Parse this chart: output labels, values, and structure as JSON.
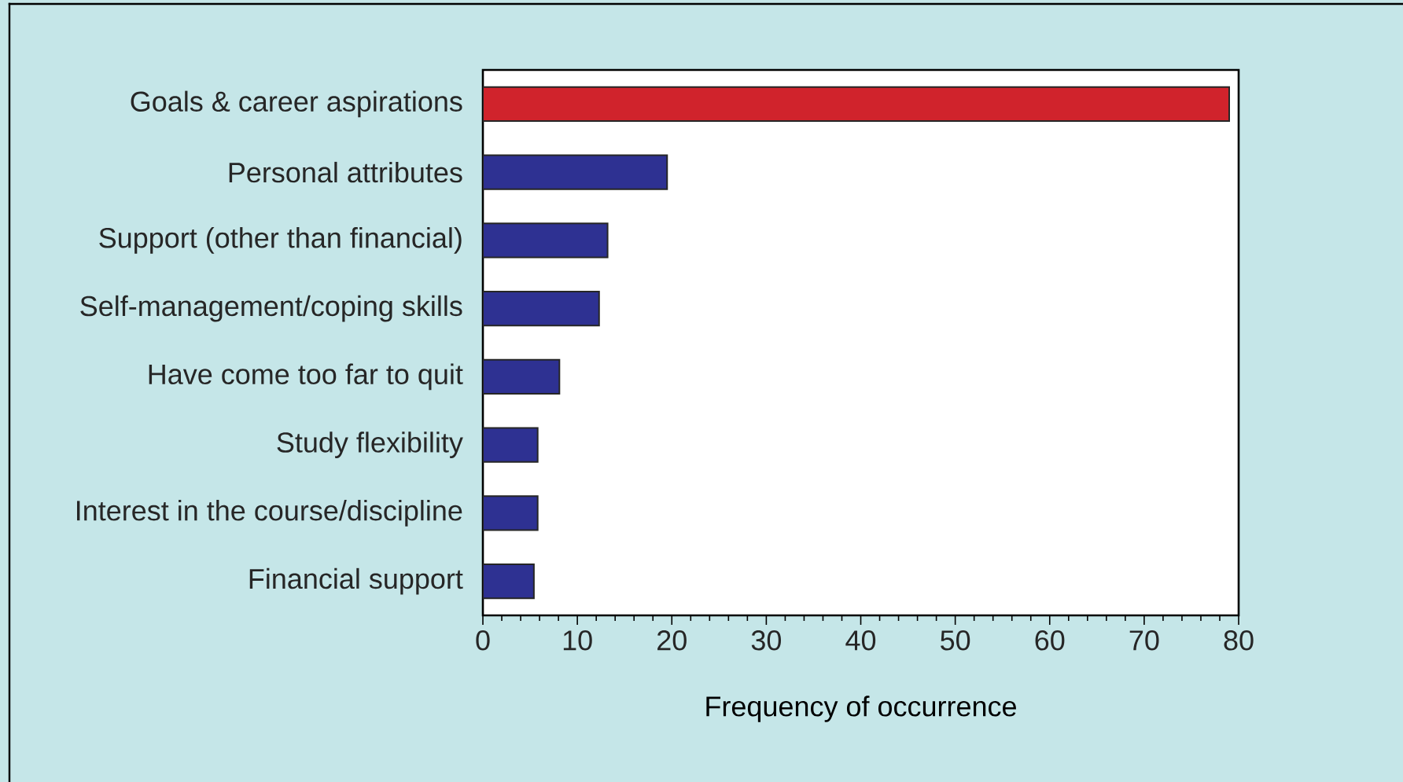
{
  "chart_data": {
    "type": "bar",
    "orientation": "horizontal",
    "xlabel": "Frequency of occurrence",
    "categories": [
      "Goals & career aspirations",
      "Personal attributes",
      "Support (other than financial)",
      "Self-management/coping skills",
      "Have come too far to quit",
      "Study flexibility",
      "Interest in the course/discipline",
      "Financial support"
    ],
    "values": [
      79,
      19.5,
      13.2,
      12.3,
      8.1,
      5.8,
      5.8,
      5.4
    ],
    "colors": [
      "#d0232c",
      "#2e3192",
      "#2e3192",
      "#2e3192",
      "#2e3192",
      "#2e3192",
      "#2e3192",
      "#2e3192"
    ],
    "xlim": [
      0,
      80
    ],
    "xticks": [
      0,
      10,
      20,
      30,
      40,
      50,
      60,
      70,
      80
    ],
    "grid": false
  }
}
